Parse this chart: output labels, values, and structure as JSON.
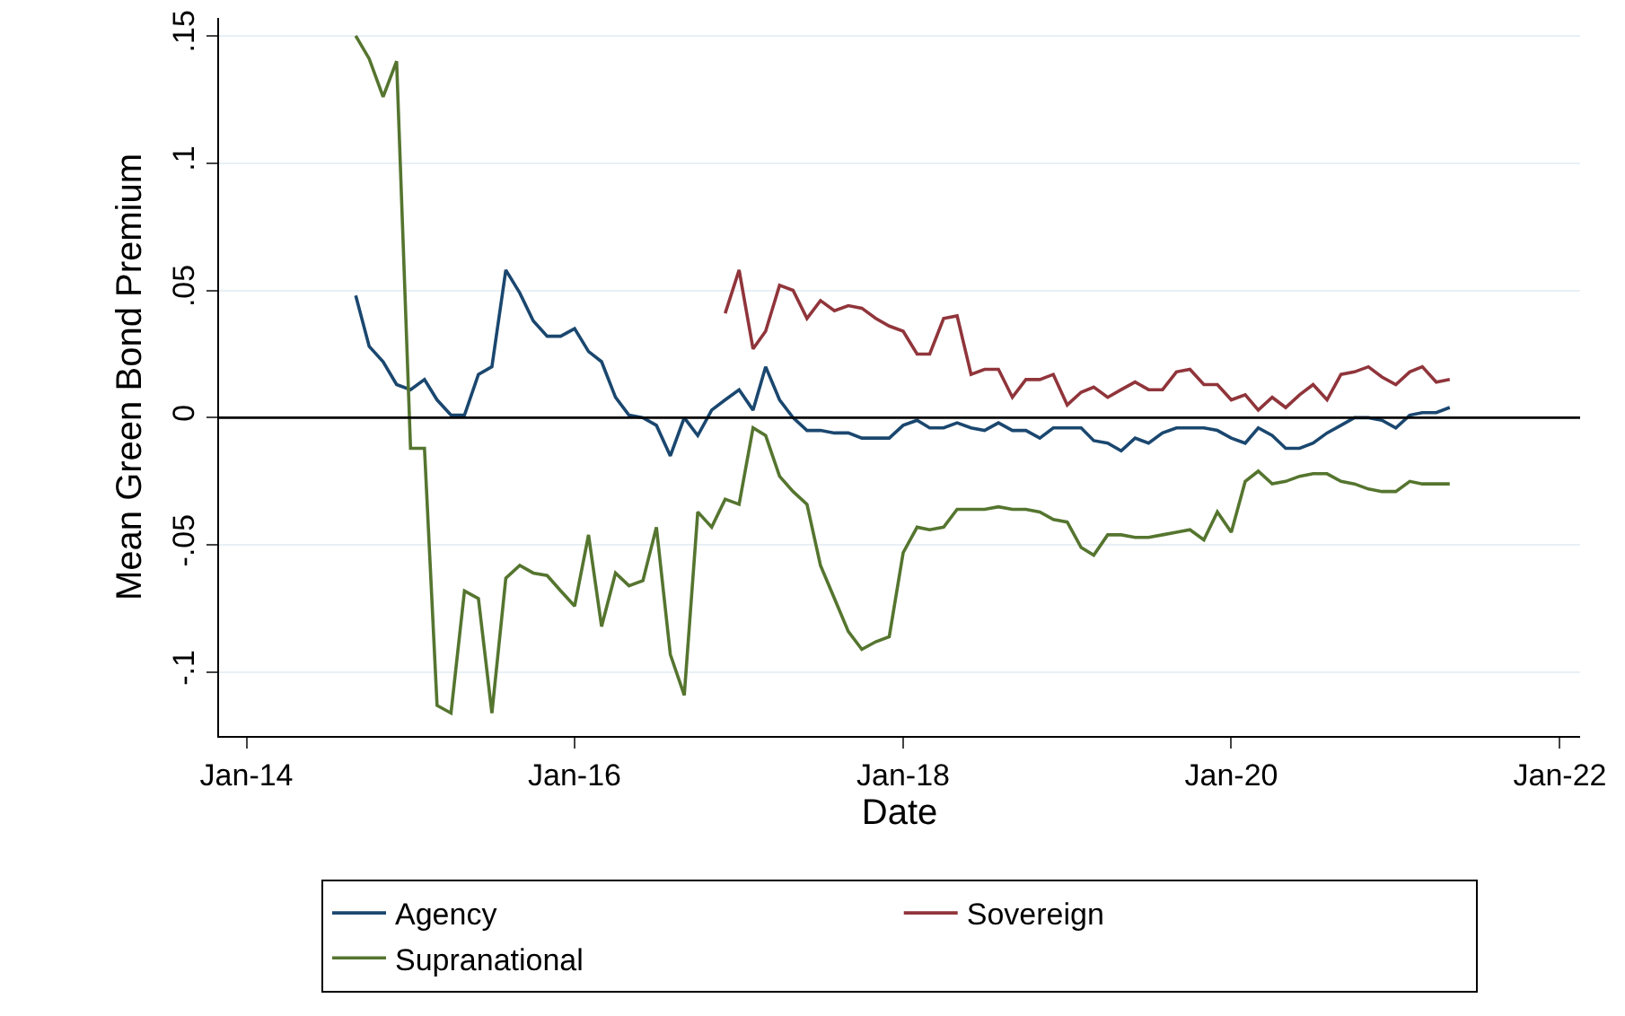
{
  "chart_data": {
    "type": "line",
    "xlabel": "Date",
    "ylabel": "Mean Green Bond Premium",
    "x": [
      "2014-09",
      "2014-10",
      "2014-11",
      "2014-12",
      "2015-01",
      "2015-02",
      "2015-03",
      "2015-04",
      "2015-05",
      "2015-06",
      "2015-07",
      "2015-08",
      "2015-09",
      "2015-10",
      "2015-11",
      "2015-12",
      "2016-01",
      "2016-02",
      "2016-03",
      "2016-04",
      "2016-05",
      "2016-06",
      "2016-07",
      "2016-08",
      "2016-09",
      "2016-10",
      "2016-11",
      "2016-12",
      "2017-01",
      "2017-02",
      "2017-03",
      "2017-04",
      "2017-05",
      "2017-06",
      "2017-07",
      "2017-08",
      "2017-09",
      "2017-10",
      "2017-11",
      "2017-12",
      "2018-01",
      "2018-02",
      "2018-03",
      "2018-04",
      "2018-05",
      "2018-06",
      "2018-07",
      "2018-08",
      "2018-09",
      "2018-10",
      "2018-11",
      "2018-12",
      "2019-01",
      "2019-02",
      "2019-03",
      "2019-04",
      "2019-05",
      "2019-06",
      "2019-07",
      "2019-08",
      "2019-09",
      "2019-10",
      "2019-11",
      "2019-12",
      "2020-01",
      "2020-02",
      "2020-03",
      "2020-04",
      "2020-05",
      "2020-06",
      "2020-07",
      "2020-08",
      "2020-09",
      "2020-10",
      "2020-11",
      "2020-12",
      "2021-01",
      "2021-02",
      "2021-03",
      "2021-04",
      "2021-05"
    ],
    "series": [
      {
        "name": "Agency",
        "color": "#1a476f",
        "values": [
          0.048,
          0.028,
          0.022,
          0.013,
          0.011,
          0.015,
          0.007,
          0.001,
          0.001,
          0.017,
          0.02,
          0.058,
          0.049,
          0.038,
          0.032,
          0.032,
          0.035,
          0.026,
          0.022,
          0.008,
          0.001,
          0,
          -0.003,
          -0.015,
          0,
          -0.007,
          0.003,
          0.007,
          0.011,
          0.003,
          0.02,
          0.007,
          0,
          -0.005,
          -0.005,
          -0.006,
          -0.006,
          -0.008,
          -0.008,
          -0.008,
          -0.003,
          -0.001,
          -0.004,
          -0.004,
          -0.002,
          -0.004,
          -0.005,
          -0.002,
          -0.005,
          -0.005,
          -0.008,
          -0.004,
          -0.004,
          -0.004,
          -0.009,
          -0.01,
          -0.013,
          -0.008,
          -0.01,
          -0.006,
          -0.004,
          -0.004,
          -0.004,
          -0.005,
          -0.008,
          -0.01,
          -0.004,
          -0.007,
          -0.012,
          -0.012,
          -0.01,
          -0.006,
          -0.003,
          0,
          0,
          -0.001,
          -0.004,
          0.001,
          0.002,
          0.002,
          0.004
        ]
      },
      {
        "name": "Sovereign",
        "color": "#90353b",
        "x": [
          "2016-12",
          "2017-01",
          "2017-02",
          "2017-03",
          "2017-04",
          "2017-05",
          "2017-06",
          "2017-07",
          "2017-08",
          "2017-09",
          "2017-10",
          "2017-11",
          "2017-12",
          "2018-01",
          "2018-02",
          "2018-03",
          "2018-04",
          "2018-05",
          "2018-06",
          "2018-07",
          "2018-08",
          "2018-09",
          "2018-10",
          "2018-11",
          "2018-12",
          "2019-01",
          "2019-02",
          "2019-03",
          "2019-04",
          "2019-05",
          "2019-06",
          "2019-07",
          "2019-08",
          "2019-09",
          "2019-10",
          "2019-11",
          "2019-12",
          "2020-01",
          "2020-02",
          "2020-03",
          "2020-04",
          "2020-05",
          "2020-06",
          "2020-07",
          "2020-08",
          "2020-09",
          "2020-10",
          "2020-11",
          "2020-12",
          "2021-01",
          "2021-02",
          "2021-03",
          "2021-04",
          "2021-05"
        ],
        "values": [
          0.041,
          0.058,
          0.027,
          0.034,
          0.052,
          0.05,
          0.039,
          0.046,
          0.042,
          0.044,
          0.043,
          0.039,
          0.036,
          0.034,
          0.025,
          0.025,
          0.039,
          0.04,
          0.017,
          0.019,
          0.019,
          0.008,
          0.015,
          0.015,
          0.017,
          0.005,
          0.01,
          0.012,
          0.008,
          0.011,
          0.014,
          0.011,
          0.011,
          0.018,
          0.019,
          0.013,
          0.013,
          0.007,
          0.009,
          0.003,
          0.008,
          0.004,
          0.009,
          0.013,
          0.007,
          0.017,
          0.018,
          0.02,
          0.016,
          0.013,
          0.018,
          0.02,
          0.014,
          0.015
        ]
      },
      {
        "name": "Supranational",
        "color": "#55752f",
        "values": [
          0.15,
          0.141,
          0.126,
          0.14,
          -0.012,
          -0.012,
          -0.113,
          -0.116,
          -0.068,
          -0.071,
          -0.116,
          -0.063,
          -0.058,
          -0.061,
          -0.062,
          -0.068,
          -0.074,
          -0.046,
          -0.082,
          -0.061,
          -0.066,
          -0.064,
          -0.043,
          -0.093,
          -0.109,
          -0.037,
          -0.043,
          -0.032,
          -0.034,
          -0.004,
          -0.007,
          -0.023,
          -0.029,
          -0.034,
          -0.058,
          -0.071,
          -0.084,
          -0.091,
          -0.088,
          -0.086,
          -0.053,
          -0.043,
          -0.044,
          -0.043,
          -0.036,
          -0.036,
          -0.036,
          -0.035,
          -0.036,
          -0.036,
          -0.037,
          -0.04,
          -0.041,
          -0.051,
          -0.054,
          -0.046,
          -0.046,
          -0.047,
          -0.047,
          -0.046,
          -0.045,
          -0.044,
          -0.048,
          -0.037,
          -0.045,
          -0.025,
          -0.021,
          -0.026,
          -0.025,
          -0.023,
          -0.022,
          -0.022,
          -0.025,
          -0.026,
          -0.028,
          -0.029,
          -0.029,
          -0.025,
          -0.026,
          -0.026,
          -0.026
        ]
      }
    ],
    "xlim": [
      "2013-11-01",
      "2022-02-15"
    ],
    "xticks": [
      {
        "value": "2014-01",
        "label": "Jan-14"
      },
      {
        "value": "2016-01",
        "label": "Jan-16"
      },
      {
        "value": "2018-01",
        "label": "Jan-18"
      },
      {
        "value": "2020-01",
        "label": "Jan-20"
      },
      {
        "value": "2022-01",
        "label": "Jan-22"
      }
    ],
    "ylim": [
      -0.125,
      0.157
    ],
    "yticks": [
      {
        "value": -0.1,
        "label": "-.1"
      },
      {
        "value": -0.05,
        "label": "-.05"
      },
      {
        "value": 0,
        "label": "0"
      },
      {
        "value": 0.05,
        "label": ".05"
      },
      {
        "value": 0.1,
        "label": ".1"
      },
      {
        "value": 0.15,
        "label": ".15"
      }
    ],
    "ref_lines": [
      {
        "axis": "y",
        "value": 0,
        "color": "#000000"
      }
    ],
    "grid": "y",
    "legend": "bottom",
    "marker": "none",
    "line_style": "solid"
  }
}
